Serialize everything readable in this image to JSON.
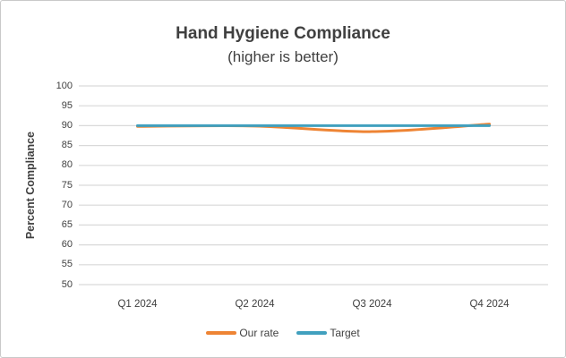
{
  "chart_data": {
    "type": "line",
    "title": "Hand Hygiene Compliance",
    "subtitle": "(higher is better)",
    "xlabel": "",
    "ylabel": "Percent Compliance",
    "categories": [
      "Q1 2024",
      "Q2 2024",
      "Q3 2024",
      "Q4 2024"
    ],
    "series": [
      {
        "name": "Our rate",
        "color": "#EE8434",
        "values": [
          89.8,
          89.9,
          88.5,
          90.4
        ]
      },
      {
        "name": "Target",
        "color": "#41A0BE",
        "values": [
          90,
          90,
          90,
          90
        ]
      }
    ],
    "ylim": [
      50,
      100
    ],
    "ytick_step": 5,
    "grid": true,
    "legend_position": "bottom-center"
  },
  "colors": {
    "text": "#404040",
    "gridline": "#D9D9D9",
    "border": "#C9C9C9",
    "background": "#FFFFFF",
    "our_rate": "#EE8434",
    "target": "#41A0BE"
  }
}
